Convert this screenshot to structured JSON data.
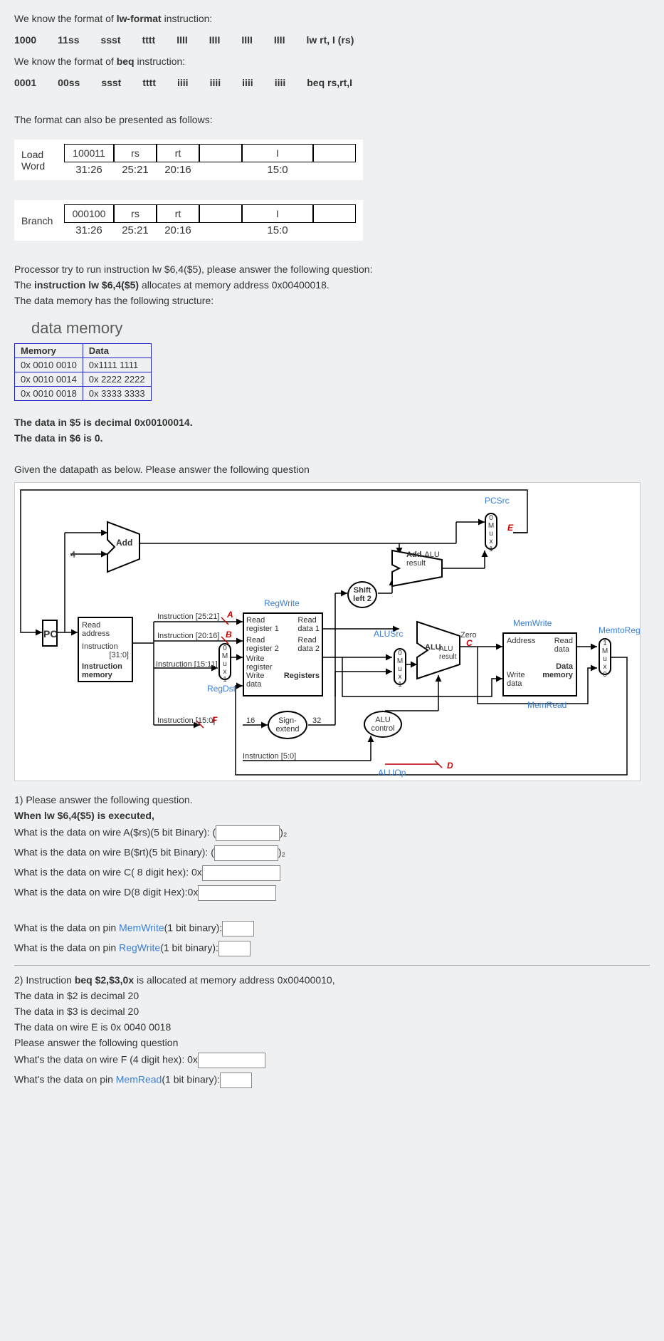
{
  "intro": {
    "line1_pre": "We know the format of ",
    "line1_bold": "lw-format",
    "line1_post": " instruction:",
    "line2_pre": "We know the format of ",
    "line2_bold": "beq",
    "line2_post": " instruction:",
    "line3": "The format can also be presented as follows:"
  },
  "lw_bits": [
    "1000",
    "11ss",
    "ssst",
    "tttt",
    "IIII",
    "IIII",
    "IIII",
    "IIII",
    "lw rt, I (rs)"
  ],
  "beq_bits": [
    "0001",
    "00ss",
    "ssst",
    "tttt",
    "iiii",
    "iiii",
    "iiii",
    "iiii",
    "beq rs,rt,I"
  ],
  "fmt_load": {
    "name": "Load",
    "name2": "Word",
    "cells": [
      "100011",
      "rs",
      "rt",
      "",
      "I",
      ""
    ],
    "widths": [
      70,
      60,
      60,
      60,
      100,
      60
    ],
    "ranges": [
      "31:26",
      "25:21",
      "20:16",
      "",
      "15:0",
      ""
    ]
  },
  "fmt_branch": {
    "name": "Branch",
    "name2": "",
    "cells": [
      "000100",
      "rs",
      "rt",
      "",
      "I",
      ""
    ],
    "widths": [
      70,
      60,
      60,
      60,
      100,
      60
    ],
    "ranges": [
      "31:26",
      "25:21",
      "20:16",
      "",
      "15:0",
      ""
    ]
  },
  "after_fmt": {
    "p1": "Processor try to run instruction lw $6,4($5), please answer the following question:",
    "p2_pre": " The ",
    "p2_bold": "instruction lw $6,4($5)",
    "p2_post": " allocates at memory address 0x00400018.",
    "p3": " The data memory has the following structure:"
  },
  "dm": {
    "title": "data memory",
    "headers": [
      "Memory",
      "Data"
    ],
    "rows": [
      [
        "0x 0010 0010",
        "0x1111 1111"
      ],
      [
        "0x 0010 0014",
        "0x 2222 2222"
      ],
      [
        "0x 0010 0018",
        "0x 3333 3333"
      ]
    ]
  },
  "mid": {
    "p1": "The data in $5 is decimal 0x00100014.",
    "p2": "The data in $6 is 0.",
    "p3": "Given the datapath as below. Please answer the following question"
  },
  "diagram": {
    "pcsrc": "PCSrc",
    "add1": "Add",
    "four": "4",
    "alu_add": "ALU",
    "add_res": "Add",
    "result": "result",
    "shift": "Shift",
    "left2": "left 2",
    "regwrite": "RegWrite",
    "pc": "PC",
    "read_addr": "Read",
    "address": "address",
    "instr": "Instruction",
    "instr_bits": "[31:0]",
    "instr_mem": "Instruction",
    "memory": "memory",
    "i2521": "Instruction [25:21]",
    "i2016": "Instruction [20:16]",
    "i1511": "Instruction [15:11]",
    "i150": "Instruction [15:0]",
    "i50": "Instruction [5:0]",
    "regdst": "RegDst",
    "read_r1": "Read",
    "reg1": "register 1",
    "read_r2": "Read",
    "reg2": "register 2",
    "write_r": "Write",
    "register": "register",
    "write_d": "Write",
    "data": "data",
    "registers": "Registers",
    "read_d1": "Read",
    "data1": "data 1",
    "read_d2": "Read",
    "data2": "data 2",
    "alusrc": "ALUSrc",
    "alu": "ALU",
    "alu_result": "ALU",
    "result2": "result",
    "zero": "Zero",
    "alu_control": "ALU",
    "control": "control",
    "aluop": "ALUOp",
    "memwrite": "MemWrite",
    "memread": "MemRead",
    "memtoreg": "MemtoReg",
    "dmem_addr": "Address",
    "dmem_read": "Read",
    "dmem_data": "data",
    "dmem_write": "Write",
    "dmem_data2": "data",
    "dmem": "Data",
    "dmem2": "memory",
    "sign": "Sign-",
    "extend": "extend",
    "sixteen": "16",
    "thirtytwo": "32",
    "A": "A",
    "B": "B",
    "C": "C",
    "D": "D",
    "E": "E",
    "F": "F",
    "mux": "M\nu\nx",
    "zero_l": "0",
    "one_l": "1"
  },
  "q1": {
    "head": "1) Please answer the following question.",
    "when": "When lw $6,4($5) is executed,",
    "qa": "What is the data on wire A($rs)(5 bit Binary):  (",
    "qa_suf": ")₂",
    "qb": "What is the data on wire B($rt)(5 bit Binary):  (",
    "qb_suf": ")₂",
    "qc": "What is the data on wire C( 8 digit hex): 0x",
    "qd": "What is the data on wire D(8 digit Hex):0x",
    "qmw_pre": "What is the data on pin ",
    "qmw_mid": "MemWrite",
    "qmw_post": "(1 bit binary):",
    "qrw_pre": "What is the data on pin ",
    "qrw_mid": "RegWrite",
    "qrw_post": "(1 bit binary):"
  },
  "q2": {
    "head_pre": "2) Instruction ",
    "head_bold": "beq $2,$3,0x",
    "head_post": " is allocated at memory address 0x00400010,",
    "p2": " The data in $2 is decimal 20",
    "p3": " The data in $3 is decimal 20",
    "p4": " The data on wire E is 0x 0040 0018",
    "p5": " Please answer the following question",
    "qf": "What's the data on wire F (4 digit hex): 0x",
    "qmr_pre": "What's the data on pin ",
    "qmr_mid": "MemRead",
    "qmr_post": "(1 bit binary):"
  },
  "input_widths": {
    "bin5": 90,
    "hex8": 110,
    "hex4": 95,
    "pin": 45
  }
}
